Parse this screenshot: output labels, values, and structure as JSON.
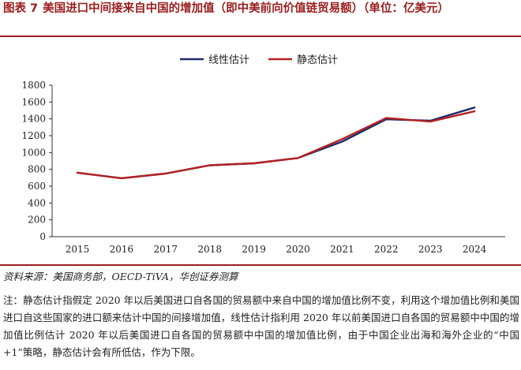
{
  "figure": {
    "number": "图表 7",
    "title": "美国进口中间接来自中国的增加值（即中美前向价值链贸易额）（单位：亿美元）"
  },
  "source": "资料来源：美国商务部，OECD-TiVA，华创证券测算",
  "note": "注：静态估计指假定 2020 年以后美国进口自各国的贸易额中来自中国的增加值比例不变，利用这个增加值比例和美国进口自这些国家的进口额来估计中国的间接增加值，线性估计指利用 2020 年以前美国进口自各国的贸易额中中国的增加值比例估计 2020 年以后美国进口自各国的贸易额中中国的增加值比例，由于中国企业出海和海外企业的“中国+1”策略，静态估计会有所低估，作为下限。",
  "colors": {
    "linear": "#1f2a6b",
    "static": "#b22222",
    "title": "#9a1d1d"
  },
  "chart_data": {
    "type": "line",
    "title": "",
    "xlabel": "",
    "ylabel": "",
    "x": [
      "2015",
      "2016",
      "2017",
      "2018",
      "2019",
      "2020",
      "2021",
      "2022",
      "2023",
      "2024"
    ],
    "ylim": [
      0,
      1800
    ],
    "yticks": [
      0,
      200,
      400,
      600,
      800,
      1000,
      1200,
      1400,
      1600,
      1800
    ],
    "grid": false,
    "legend_position": "top-center",
    "series": [
      {
        "name": "线性估计",
        "color": "#1f2a6b",
        "values": [
          760,
          695,
          750,
          848,
          872,
          935,
          1130,
          1395,
          1378,
          1535
        ]
      },
      {
        "name": "静态估计",
        "color": "#b22222",
        "values": [
          760,
          695,
          750,
          848,
          872,
          935,
          1160,
          1410,
          1368,
          1490
        ]
      }
    ]
  }
}
